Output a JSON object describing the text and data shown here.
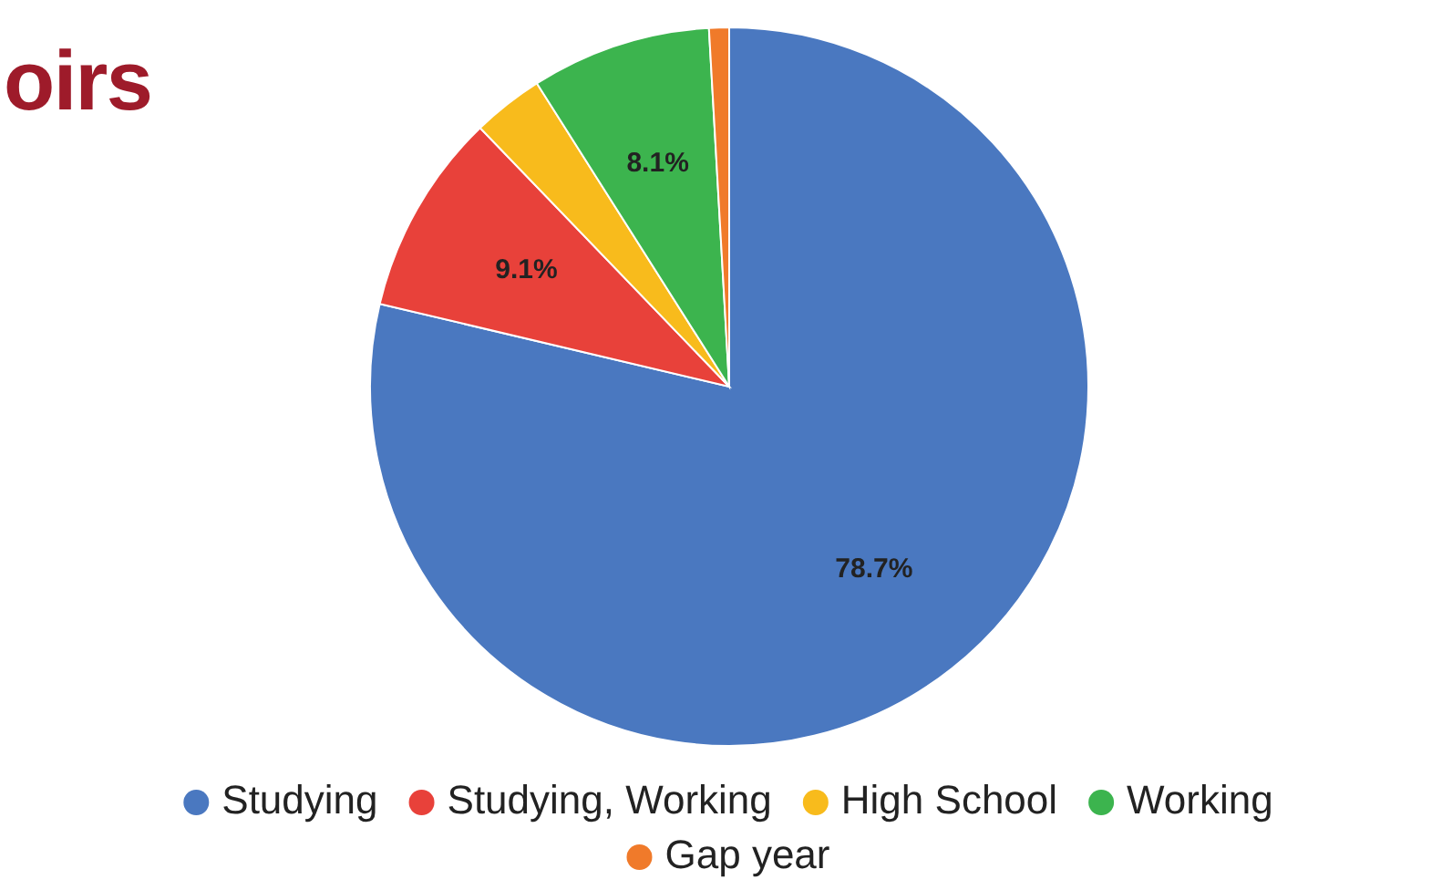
{
  "chart_data": {
    "type": "pie",
    "title": "oirs",
    "categories": [
      "Studying",
      "Studying, Working",
      "High School",
      "Working",
      "Gap year"
    ],
    "values": [
      78.7,
      9.1,
      3.2,
      8.1,
      0.9
    ],
    "value_labels": [
      "78.7%",
      "9.1%",
      null,
      "8.1%",
      null
    ],
    "colors": [
      "#4a78c0",
      "#e8413a",
      "#f8bb1c",
      "#3cb44e",
      "#f07a2a"
    ],
    "legend": "bottom"
  }
}
